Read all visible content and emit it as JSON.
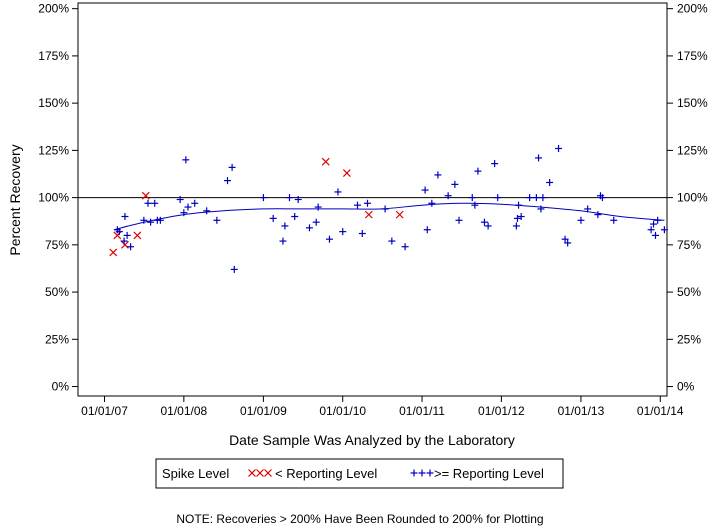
{
  "chart_data": {
    "type": "scatter",
    "xlabel": "Date Sample Was Analyzed by the Laboratory",
    "ylabel": "Percent Recovery",
    "ylim": [
      -5,
      203
    ],
    "xlim": [
      "2006-09-01",
      "2014-02-01"
    ],
    "x_ticks": [
      {
        "date": "2007-01-01",
        "label": "01/01/07"
      },
      {
        "date": "2008-01-01",
        "label": "01/01/08"
      },
      {
        "date": "2009-01-01",
        "label": "01/01/09"
      },
      {
        "date": "2010-01-01",
        "label": "01/01/10"
      },
      {
        "date": "2011-01-01",
        "label": "01/01/11"
      },
      {
        "date": "2012-01-01",
        "label": "01/01/12"
      },
      {
        "date": "2013-01-01",
        "label": "01/01/13"
      },
      {
        "date": "2014-01-01",
        "label": "01/01/14"
      }
    ],
    "y_ticks": [
      {
        "value": 0,
        "label": "0%"
      },
      {
        "value": 25,
        "label": "25%"
      },
      {
        "value": 50,
        "label": "50%"
      },
      {
        "value": 75,
        "label": "75%"
      },
      {
        "value": 100,
        "label": "100%"
      },
      {
        "value": 125,
        "label": "125%"
      },
      {
        "value": 150,
        "label": "150%"
      },
      {
        "value": 175,
        "label": "175%"
      },
      {
        "value": 200,
        "label": "200%"
      }
    ],
    "reference_line": 100,
    "legend": {
      "title": "Spike Level",
      "placement": "bottom"
    },
    "series": [
      {
        "name": "< Reporting Level",
        "marker": "x",
        "color": "#e00000",
        "points": [
          {
            "x": "2007-02-10",
            "y": 71
          },
          {
            "x": "2007-03-01",
            "y": 80
          },
          {
            "x": "2007-04-05",
            "y": 75
          },
          {
            "x": "2007-06-01",
            "y": 80
          },
          {
            "x": "2007-07-10",
            "y": 101
          },
          {
            "x": "2009-10-15",
            "y": 119
          },
          {
            "x": "2010-01-20",
            "y": 113
          },
          {
            "x": "2010-05-01",
            "y": 91
          },
          {
            "x": "2010-09-20",
            "y": 91
          }
        ]
      },
      {
        "name": ">= Reporting Level",
        "marker": "plus",
        "color": "#0000c0",
        "points": [
          {
            "x": "2007-03-01",
            "y": 83
          },
          {
            "x": "2007-03-10",
            "y": 82
          },
          {
            "x": "2007-04-01",
            "y": 77
          },
          {
            "x": "2007-04-05",
            "y": 90
          },
          {
            "x": "2007-04-15",
            "y": 80
          },
          {
            "x": "2007-05-01",
            "y": 74
          },
          {
            "x": "2007-07-01",
            "y": 88
          },
          {
            "x": "2007-07-20",
            "y": 97
          },
          {
            "x": "2007-08-01",
            "y": 87
          },
          {
            "x": "2007-08-20",
            "y": 97
          },
          {
            "x": "2007-09-01",
            "y": 88
          },
          {
            "x": "2007-09-15",
            "y": 88
          },
          {
            "x": "2007-12-15",
            "y": 99
          },
          {
            "x": "2008-01-01",
            "y": 92
          },
          {
            "x": "2008-01-10",
            "y": 120
          },
          {
            "x": "2008-01-20",
            "y": 95
          },
          {
            "x": "2008-02-20",
            "y": 97
          },
          {
            "x": "2008-04-15",
            "y": 93
          },
          {
            "x": "2008-06-01",
            "y": 88
          },
          {
            "x": "2008-07-20",
            "y": 109
          },
          {
            "x": "2008-08-10",
            "y": 116
          },
          {
            "x": "2008-08-20",
            "y": 62
          },
          {
            "x": "2009-01-01",
            "y": 100
          },
          {
            "x": "2009-02-15",
            "y": 89
          },
          {
            "x": "2009-04-01",
            "y": 77
          },
          {
            "x": "2009-04-10",
            "y": 85
          },
          {
            "x": "2009-05-01",
            "y": 100
          },
          {
            "x": "2009-05-25",
            "y": 90
          },
          {
            "x": "2009-06-10",
            "y": 99
          },
          {
            "x": "2009-08-01",
            "y": 84
          },
          {
            "x": "2009-09-01",
            "y": 87
          },
          {
            "x": "2009-09-10",
            "y": 95
          },
          {
            "x": "2009-11-01",
            "y": 78
          },
          {
            "x": "2009-12-10",
            "y": 103
          },
          {
            "x": "2010-01-01",
            "y": 82
          },
          {
            "x": "2010-03-10",
            "y": 96
          },
          {
            "x": "2010-04-01",
            "y": 81
          },
          {
            "x": "2010-04-25",
            "y": 97
          },
          {
            "x": "2010-07-15",
            "y": 94
          },
          {
            "x": "2010-08-15",
            "y": 77
          },
          {
            "x": "2010-10-15",
            "y": 74
          },
          {
            "x": "2011-01-15",
            "y": 104
          },
          {
            "x": "2011-01-25",
            "y": 83
          },
          {
            "x": "2011-02-15",
            "y": 97
          },
          {
            "x": "2011-03-15",
            "y": 112
          },
          {
            "x": "2011-05-01",
            "y": 101
          },
          {
            "x": "2011-06-01",
            "y": 107
          },
          {
            "x": "2011-06-20",
            "y": 88
          },
          {
            "x": "2011-08-20",
            "y": 100
          },
          {
            "x": "2011-09-01",
            "y": 96
          },
          {
            "x": "2011-09-15",
            "y": 114
          },
          {
            "x": "2011-10-15",
            "y": 87
          },
          {
            "x": "2011-11-01",
            "y": 85
          },
          {
            "x": "2011-12-01",
            "y": 118
          },
          {
            "x": "2011-12-15",
            "y": 100
          },
          {
            "x": "2012-03-10",
            "y": 85
          },
          {
            "x": "2012-03-15",
            "y": 89
          },
          {
            "x": "2012-03-20",
            "y": 96
          },
          {
            "x": "2012-04-01",
            "y": 90
          },
          {
            "x": "2012-05-10",
            "y": 100
          },
          {
            "x": "2012-06-10",
            "y": 100
          },
          {
            "x": "2012-06-20",
            "y": 121
          },
          {
            "x": "2012-07-01",
            "y": 94
          },
          {
            "x": "2012-07-10",
            "y": 100
          },
          {
            "x": "2012-08-10",
            "y": 108
          },
          {
            "x": "2012-09-20",
            "y": 126
          },
          {
            "x": "2012-10-20",
            "y": 78
          },
          {
            "x": "2012-11-01",
            "y": 76
          },
          {
            "x": "2013-01-01",
            "y": 88
          },
          {
            "x": "2013-02-01",
            "y": 94
          },
          {
            "x": "2013-03-20",
            "y": 91
          },
          {
            "x": "2013-04-01",
            "y": 101
          },
          {
            "x": "2013-04-10",
            "y": 100
          },
          {
            "x": "2013-06-01",
            "y": 88
          },
          {
            "x": "2013-11-20",
            "y": 83
          },
          {
            "x": "2013-12-01",
            "y": 86
          },
          {
            "x": "2013-12-10",
            "y": 80
          },
          {
            "x": "2013-12-20",
            "y": 88
          },
          {
            "x": "2014-01-20",
            "y": 83
          }
        ]
      }
    ],
    "trend_curve": {
      "color": "#0000c0",
      "points": [
        {
          "x": "2007-02-15",
          "y": 83
        },
        {
          "x": "2007-07-01",
          "y": 87
        },
        {
          "x": "2008-01-01",
          "y": 91
        },
        {
          "x": "2008-07-01",
          "y": 93
        },
        {
          "x": "2009-01-01",
          "y": 94
        },
        {
          "x": "2009-07-01",
          "y": 94
        },
        {
          "x": "2010-01-01",
          "y": 94
        },
        {
          "x": "2010-07-01",
          "y": 94
        },
        {
          "x": "2011-01-01",
          "y": 96
        },
        {
          "x": "2011-07-01",
          "y": 97
        },
        {
          "x": "2012-01-01",
          "y": 96.5
        },
        {
          "x": "2012-07-01",
          "y": 95
        },
        {
          "x": "2013-01-01",
          "y": 93
        },
        {
          "x": "2013-07-01",
          "y": 90
        },
        {
          "x": "2014-01-20",
          "y": 88
        }
      ]
    },
    "note": "NOTE: Recoveries > 200% Have Been Rounded to 200% for Plotting"
  }
}
